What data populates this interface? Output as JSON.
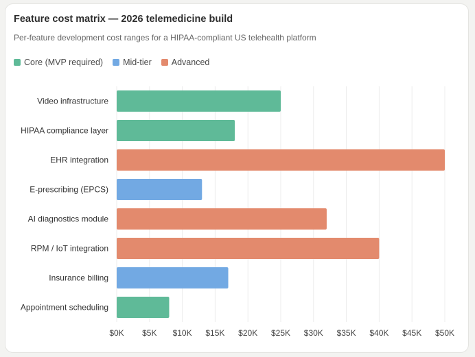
{
  "header": {
    "title": "Feature cost matrix — 2026 telemedicine build",
    "subtitle": "Per-feature development cost ranges for a HIPAA-compliant US telehealth platform"
  },
  "legend": [
    {
      "label": "Core (MVP required)",
      "color": "#5fba98"
    },
    {
      "label": "Mid-tier",
      "color": "#72a9e3"
    },
    {
      "label": "Advanced",
      "color": "#e38a6d"
    }
  ],
  "chart_data": {
    "type": "bar",
    "orientation": "horizontal",
    "title": "Feature cost matrix — 2026 telemedicine build",
    "subtitle": "Per-feature development cost ranges for a HIPAA-compliant US telehealth platform",
    "xlabel": "",
    "ylabel": "",
    "xlim": [
      0,
      50000
    ],
    "x_ticks": [
      "$0K",
      "$5K",
      "$10K",
      "$15K",
      "$20K",
      "$25K",
      "$30K",
      "$35K",
      "$40K",
      "$45K",
      "$50K"
    ],
    "grid": "vertical",
    "legend_position": "top-left",
    "categories": [
      "Video infrastructure",
      "HIPAA compliance layer",
      "EHR integration",
      "E-prescribing (EPCS)",
      "AI diagnostics module",
      "RPM / IoT integration",
      "Insurance billing",
      "Appointment scheduling"
    ],
    "values": [
      25000,
      18000,
      50000,
      13000,
      32000,
      40000,
      17000,
      8000
    ],
    "tiers": [
      "Core (MVP required)",
      "Core (MVP required)",
      "Advanced",
      "Mid-tier",
      "Advanced",
      "Advanced",
      "Mid-tier",
      "Core (MVP required)"
    ]
  }
}
